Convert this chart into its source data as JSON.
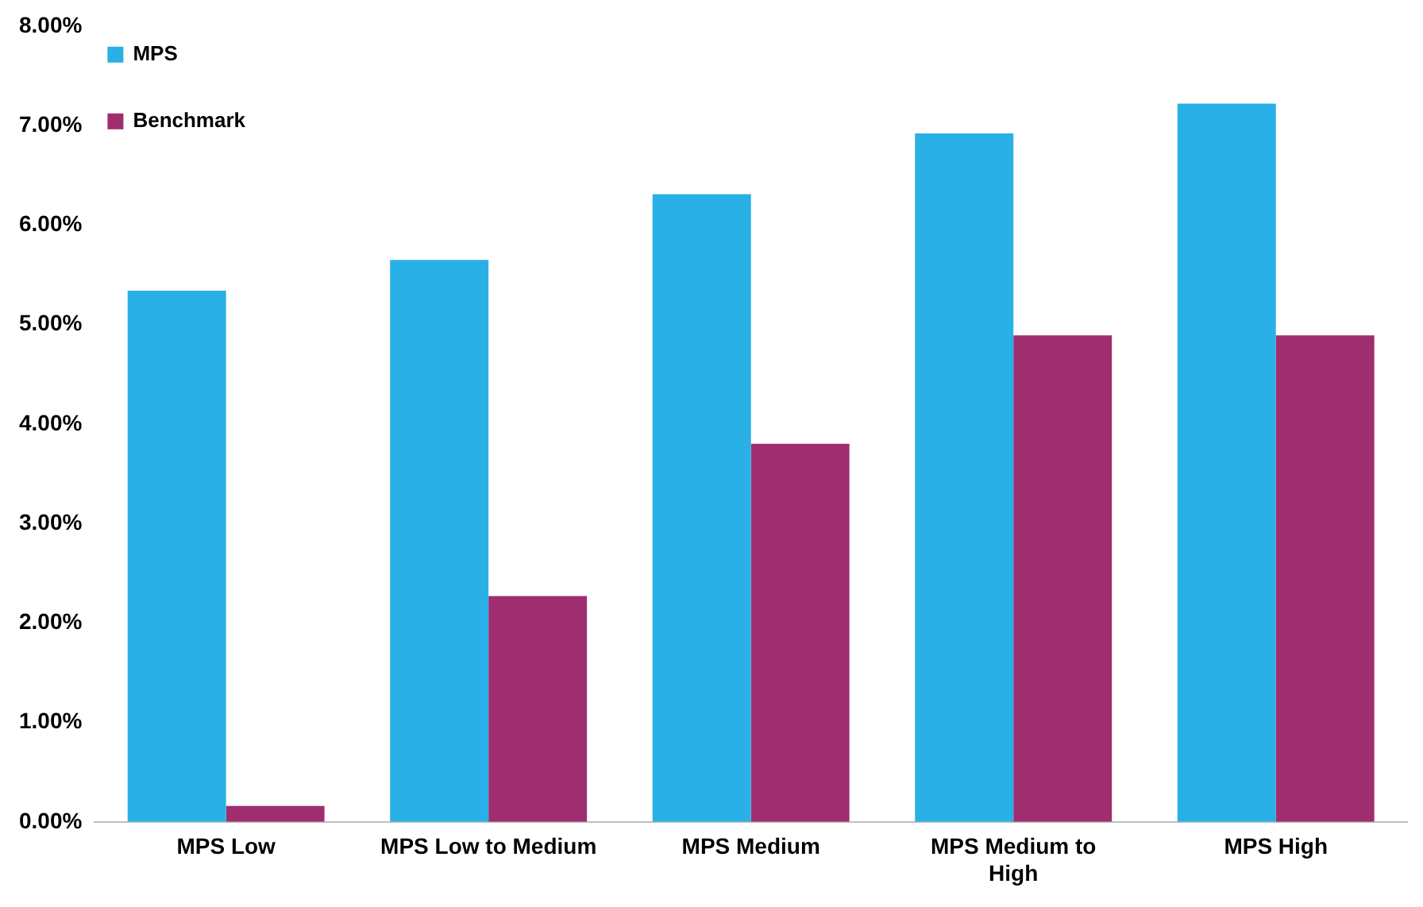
{
  "chart_data": {
    "type": "bar",
    "categories": [
      "MPS Low",
      "MPS Low to Medium",
      "MPS Medium",
      "MPS Medium to High",
      "MPS High"
    ],
    "series": [
      {
        "name": "MPS",
        "color": "#29b0e6",
        "values": [
          5.34,
          5.65,
          6.31,
          6.92,
          7.22
        ]
      },
      {
        "name": "Benchmark",
        "color": "#9e2e6f",
        "values": [
          0.16,
          2.27,
          3.8,
          4.89,
          4.89
        ]
      }
    ],
    "ylim": [
      0,
      8
    ],
    "yticks": [
      {
        "value": 0,
        "label": "0.00%"
      },
      {
        "value": 1,
        "label": "1.00%"
      },
      {
        "value": 2,
        "label": "2.00%"
      },
      {
        "value": 3,
        "label": "3.00%"
      },
      {
        "value": 4,
        "label": "4.00%"
      },
      {
        "value": 5,
        "label": "5.00%"
      },
      {
        "value": 6,
        "label": "6.00%"
      },
      {
        "value": 7,
        "label": "7.00%"
      },
      {
        "value": 8,
        "label": "8.00%"
      }
    ],
    "grid": false,
    "legend": "top left"
  }
}
